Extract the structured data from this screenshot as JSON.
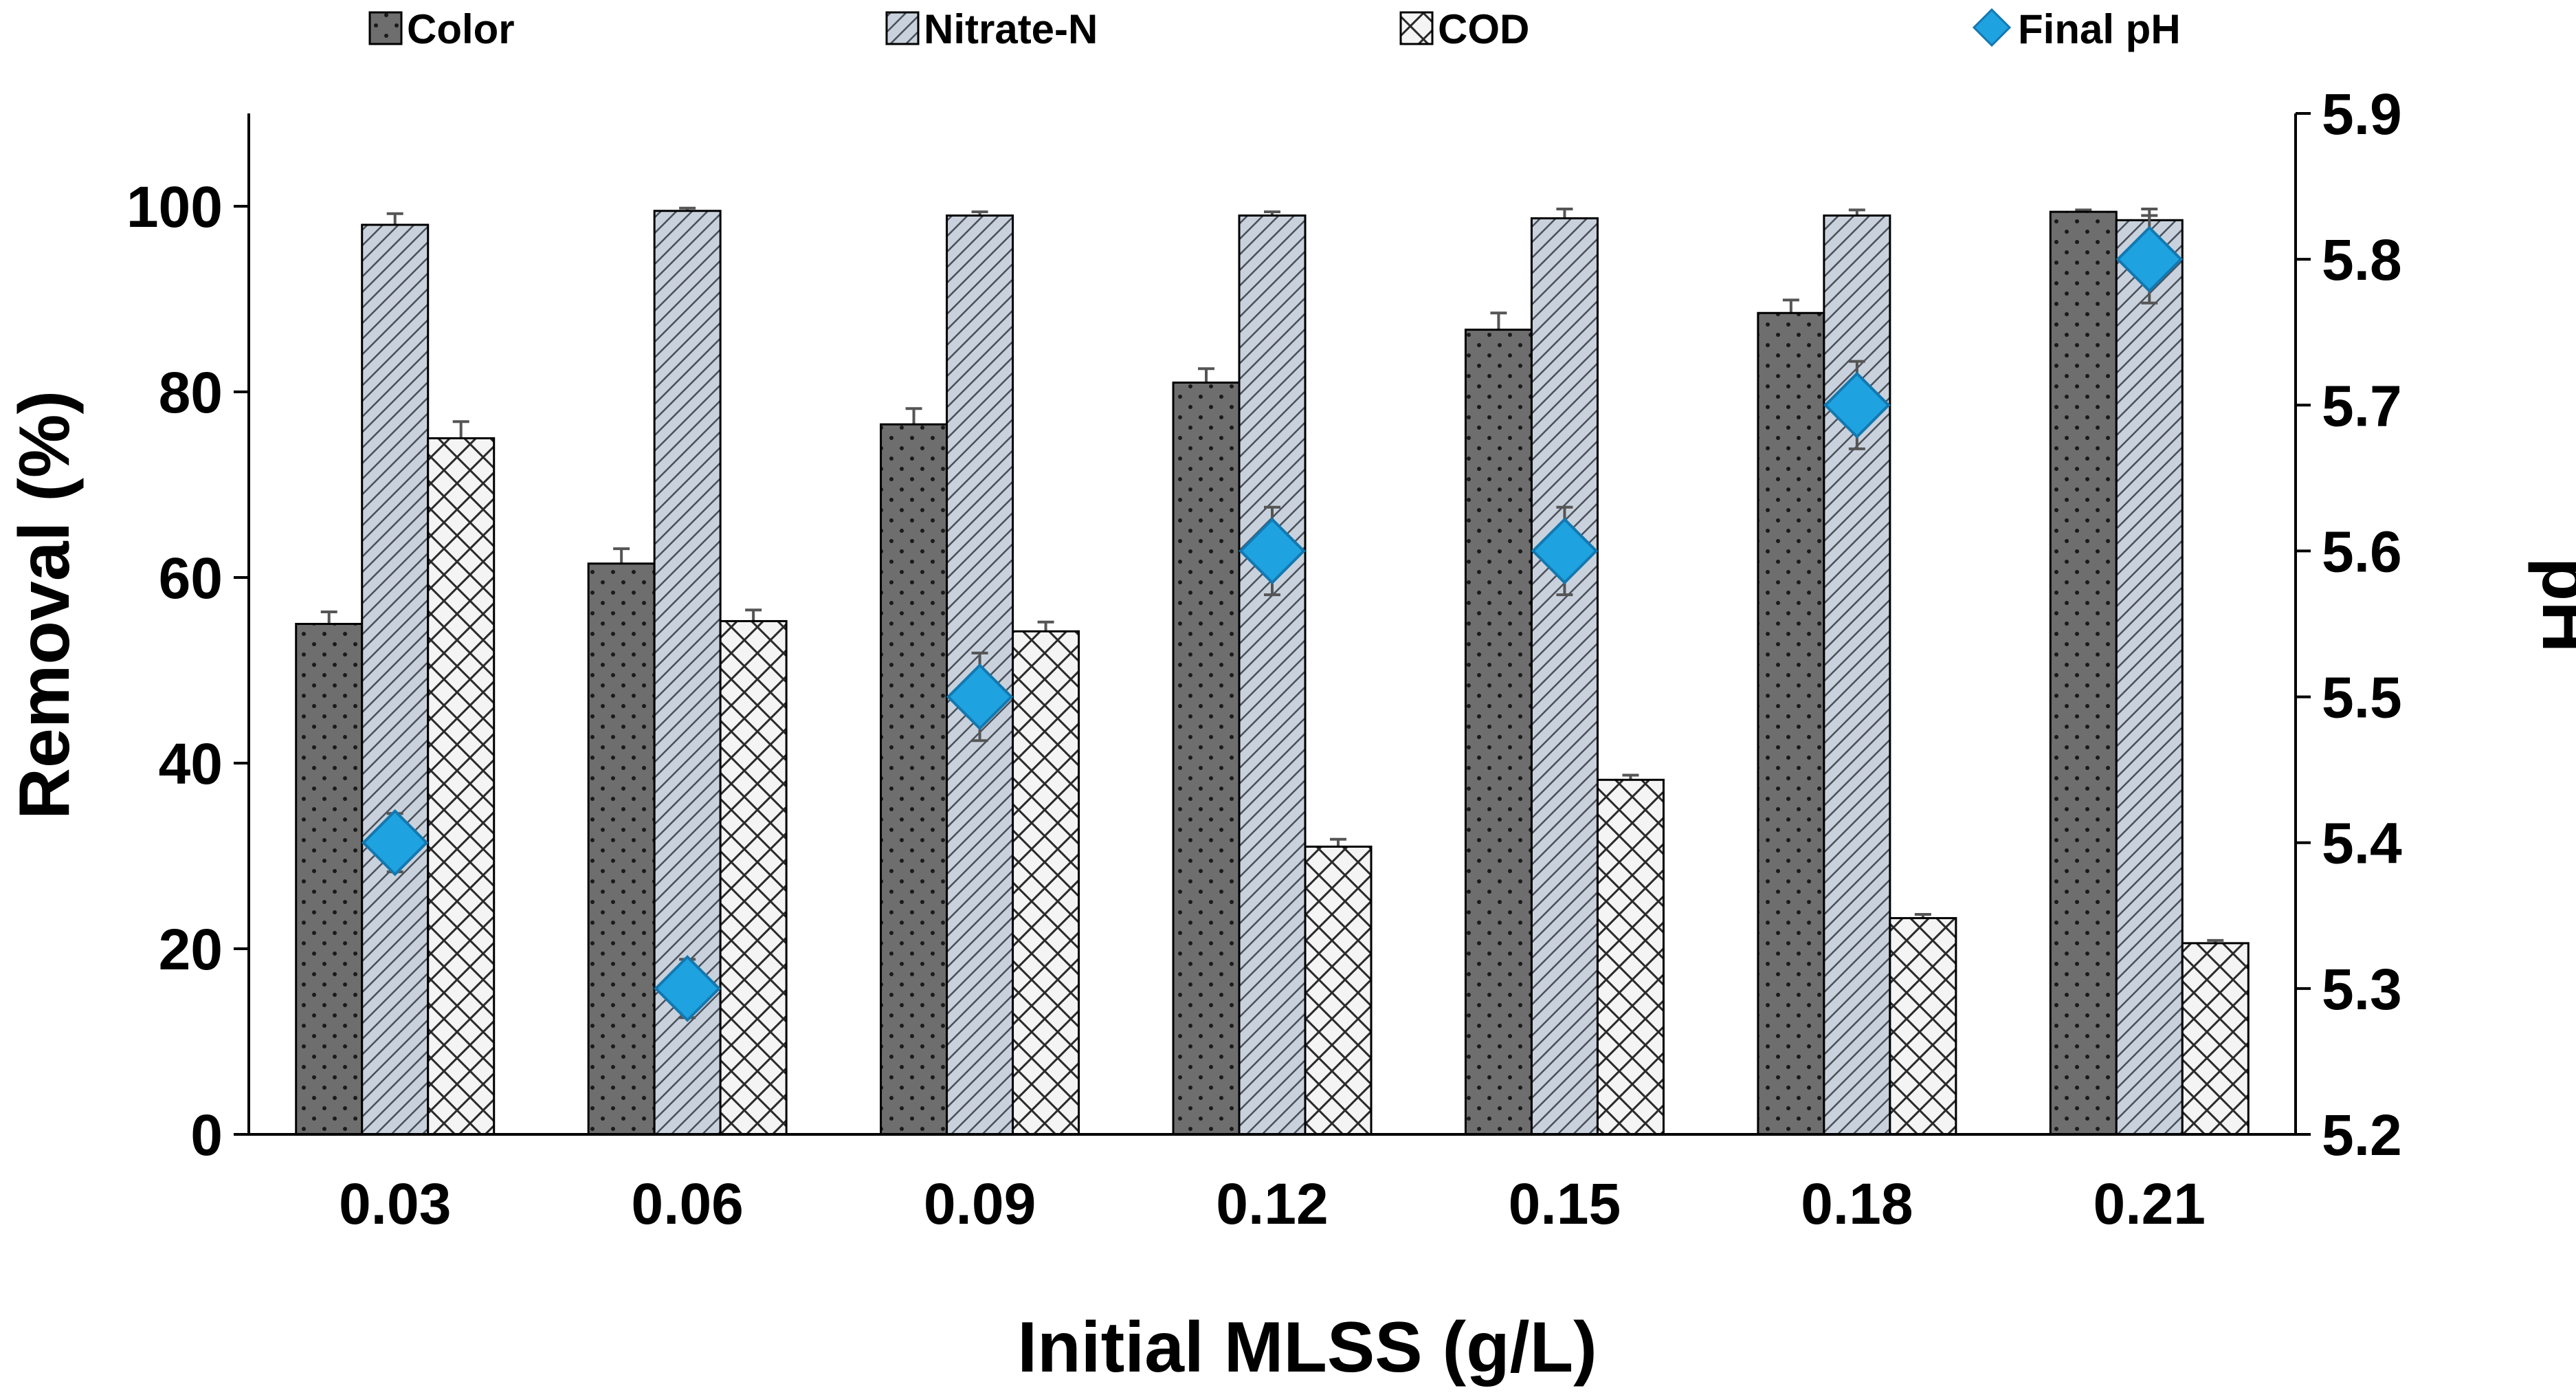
{
  "chart_data": {
    "type": "bar",
    "title": "",
    "xlabel": "Initial MLSS (g/L)",
    "ylabel": "Removal (%)",
    "y2label": "pH",
    "categories": [
      "0.03",
      "0.06",
      "0.09",
      "0.12",
      "0.15",
      "0.18",
      "0.21"
    ],
    "ylim": [
      0,
      110
    ],
    "yticks": [
      "0",
      "20",
      "40",
      "60",
      "80",
      "100"
    ],
    "ytick_values": [
      0,
      20,
      40,
      60,
      80,
      100
    ],
    "y2lim": [
      5.2,
      5.9
    ],
    "y2ticks": [
      "5.2",
      "5.3",
      "5.4",
      "5.5",
      "5.6",
      "5.7",
      "5.8",
      "5.9"
    ],
    "y2tick_values": [
      5.2,
      5.3,
      5.4,
      5.5,
      5.6,
      5.7,
      5.8,
      5.9
    ],
    "series": [
      {
        "name": "Color",
        "pattern": "dots",
        "values": [
          55,
          61.5,
          76.5,
          81,
          86.7,
          88.5,
          99.4
        ],
        "errors": [
          1.3,
          1.6,
          1.7,
          1.5,
          1.8,
          1.4,
          0.2
        ]
      },
      {
        "name": "Nitrate-N",
        "pattern": "diagonal",
        "values": [
          98,
          99.5,
          99,
          99,
          98.7,
          99,
          98.5
        ],
        "errors": [
          1.2,
          0.3,
          0.4,
          0.4,
          1.0,
          0.6,
          1.2
        ]
      },
      {
        "name": "COD",
        "pattern": "crosshatch",
        "values": [
          75,
          55.3,
          54.2,
          31,
          38.2,
          23.3,
          20.6
        ],
        "errors": [
          1.8,
          1.2,
          1.0,
          0.8,
          0.5,
          0.4,
          0.3
        ]
      }
    ],
    "line_series": [
      {
        "name": "Final pH",
        "axis": "right",
        "marker": "diamond",
        "values": [
          5.4,
          5.3,
          5.5,
          5.6,
          5.6,
          5.7,
          5.8
        ],
        "errors": [
          0.02,
          0.02,
          0.03,
          0.03,
          0.03,
          0.03,
          0.03
        ]
      }
    ],
    "legend_position": "top",
    "grid": false
  },
  "colors": {
    "color_bar": "#6e6e6e",
    "nitrate_bar": "#c9d2dc",
    "cod_bar": "#f4f4f4",
    "ph_marker": "#1fa2e0",
    "ph_marker_edge": "#1378b0",
    "axis": "#000000",
    "error_bar": "#555555"
  }
}
